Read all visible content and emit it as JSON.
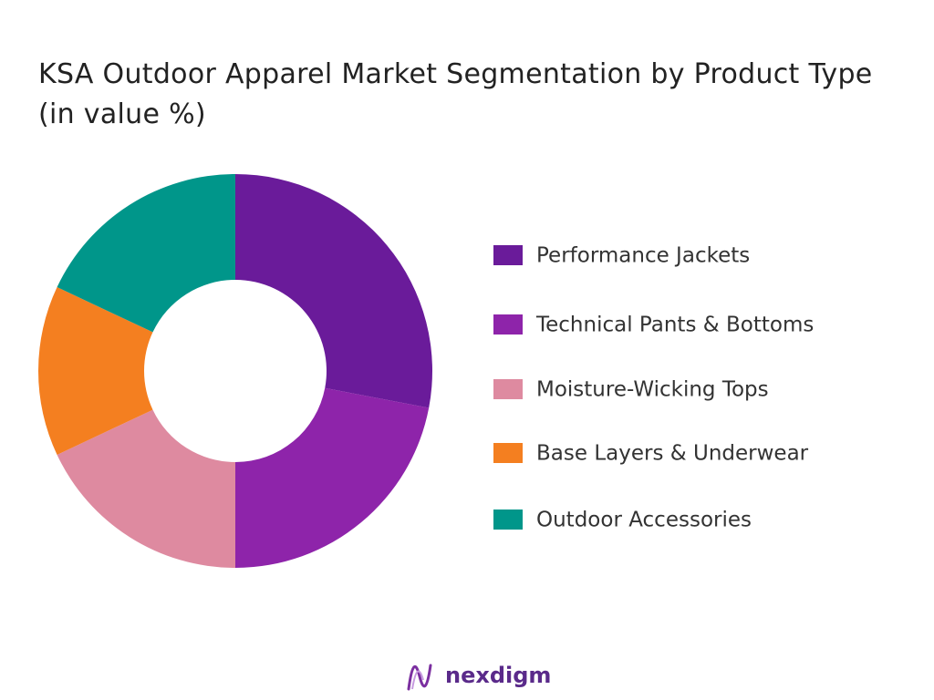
{
  "chart_data": {
    "type": "donut",
    "title": "KSA Outdoor Apparel Market Segmentation by Product Type (in value %)",
    "categories": [
      "Performance Jackets",
      "Technical Pants & Bottoms",
      "Moisture-Wicking Tops",
      "Base Layers & Underwear",
      "Outdoor Accessories"
    ],
    "values": [
      28,
      22,
      18,
      14,
      18
    ],
    "colors": [
      "#6a1b9a",
      "#8e24aa",
      "#de8aa0",
      "#f47f20",
      "#00968a"
    ],
    "legend": "right"
  },
  "footer": {
    "logo": "nexdigm"
  }
}
